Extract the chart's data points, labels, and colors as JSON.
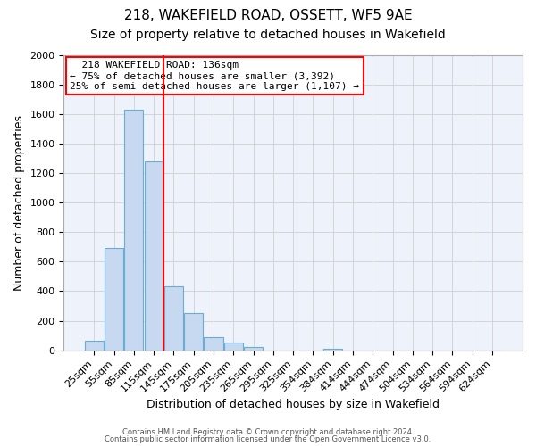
{
  "title": "218, WAKEFIELD ROAD, OSSETT, WF5 9AE",
  "subtitle": "Size of property relative to detached houses in Wakefield",
  "xlabel": "Distribution of detached houses by size in Wakefield",
  "ylabel": "Number of detached properties",
  "bar_labels": [
    "25sqm",
    "55sqm",
    "85sqm",
    "115sqm",
    "145sqm",
    "175sqm",
    "205sqm",
    "235sqm",
    "265sqm",
    "295sqm",
    "325sqm",
    "354sqm",
    "384sqm",
    "414sqm",
    "444sqm",
    "474sqm",
    "504sqm",
    "534sqm",
    "564sqm",
    "594sqm",
    "624sqm"
  ],
  "bar_values": [
    65,
    695,
    1630,
    1280,
    435,
    250,
    90,
    50,
    25,
    0,
    0,
    0,
    12,
    0,
    0,
    0,
    0,
    0,
    0,
    0,
    0
  ],
  "bar_color": "#c6d9f0",
  "bar_edge_color": "#6aacd4",
  "vline_color": "red",
  "vline_pos": 3.5,
  "annotation_title": "218 WAKEFIELD ROAD: 136sqm",
  "annotation_line1": "← 75% of detached houses are smaller (3,392)",
  "annotation_line2": "25% of semi-detached houses are larger (1,107) →",
  "ylim": [
    0,
    2000
  ],
  "yticks": [
    0,
    200,
    400,
    600,
    800,
    1000,
    1200,
    1400,
    1600,
    1800,
    2000
  ],
  "footer1": "Contains HM Land Registry data © Crown copyright and database right 2024.",
  "footer2": "Contains public sector information licensed under the Open Government Licence v3.0.",
  "bg_color": "#ffffff",
  "grid_color": "#d0d0d0",
  "title_fontsize": 11,
  "subtitle_fontsize": 10,
  "axis_label_fontsize": 9,
  "tick_fontsize": 8,
  "annot_fontsize": 8
}
